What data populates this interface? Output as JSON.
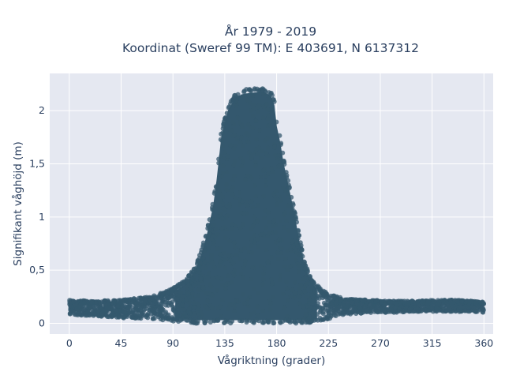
{
  "chart_data": {
    "type": "scatter",
    "title_line1": "År 1979 - 2019",
    "title_line2": "Koordinat (Sweref 99 TM): E 403691, N 6137312",
    "xlabel": "Vågriktning (grader)",
    "ylabel": "Signifikant våghöjd (m)",
    "xlim": [
      -17,
      368
    ],
    "ylim": [
      -0.1,
      2.35
    ],
    "x_ticks": [
      0,
      45,
      90,
      135,
      180,
      225,
      270,
      315,
      360
    ],
    "x_tick_labels": [
      "0",
      "45",
      "90",
      "135",
      "180",
      "225",
      "270",
      "315",
      "360"
    ],
    "y_ticks": [
      0,
      0.5,
      1,
      1.5,
      2
    ],
    "y_tick_labels": [
      "0",
      "0,5",
      "1",
      "1,5",
      "2"
    ],
    "grid": true,
    "marker_color": "#34586e",
    "plot_background": "#e5e8f1",
    "envelope": {
      "x": [
        0,
        20,
        45,
        70,
        90,
        100,
        105,
        110,
        115,
        120,
        125,
        128,
        132,
        138,
        145,
        152,
        160,
        168,
        175,
        178,
        180,
        183,
        186,
        190,
        195,
        200,
        205,
        210,
        215,
        220,
        225,
        230,
        240,
        260,
        280,
        300,
        320,
        340,
        360
      ],
      "upper": [
        0.22,
        0.21,
        0.22,
        0.25,
        0.33,
        0.4,
        0.47,
        0.55,
        0.7,
        0.9,
        1.15,
        1.4,
        1.8,
        2.05,
        2.17,
        2.2,
        2.21,
        2.22,
        2.18,
        2.1,
        1.9,
        1.75,
        1.55,
        1.35,
        1.1,
        0.8,
        0.55,
        0.43,
        0.36,
        0.31,
        0.28,
        0.26,
        0.23,
        0.22,
        0.21,
        0.21,
        0.22,
        0.22,
        0.2
      ],
      "lower": [
        0.08,
        0.07,
        0.05,
        0.04,
        0.02,
        0.01,
        0.0,
        0.0,
        0.0,
        0.0,
        0.0,
        0.0,
        0.0,
        0.0,
        0.0,
        0.0,
        0.0,
        0.0,
        0.0,
        0.0,
        0.0,
        0.0,
        0.0,
        0.0,
        0.0,
        0.0,
        0.0,
        0.0,
        0.01,
        0.02,
        0.04,
        0.06,
        0.08,
        0.1,
        0.1,
        0.11,
        0.11,
        0.11,
        0.1
      ]
    }
  }
}
